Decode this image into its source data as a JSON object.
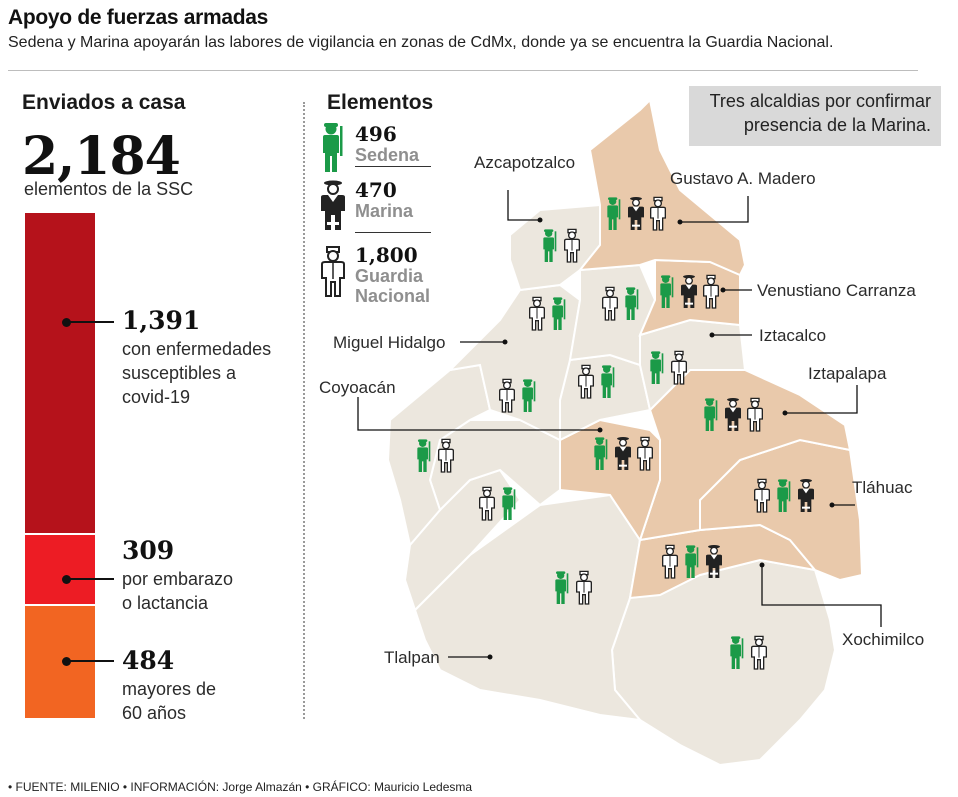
{
  "header": {
    "title": "Apoyo de fuerzas armadas",
    "subtitle": "Sedena y Marina apoyarán las labores de vigilancia en zonas de CdMx, donde ya se encuentra la Guardia Nacional."
  },
  "colors": {
    "sedena": "#1b9a48",
    "marina": "#222222",
    "guardia": "#ffffff",
    "map_default": "#ece7de",
    "map_marina": "#e9c9ab",
    "bar_dark": "#b5121b",
    "bar_mid": "#ed1c24",
    "bar_orange": "#f26522"
  },
  "chart_data": [
    {
      "type": "bar",
      "title": "Enviados a casa",
      "total": {
        "value": "2,184",
        "label": "elementos de la SSC",
        "number": 2184
      },
      "categories": [
        "con enfermedades susceptibles a covid-19",
        "por embarazo o lactancia",
        "mayores de 60 años"
      ],
      "values": [
        1391,
        309,
        484
      ],
      "series": [
        {
          "value": "1,391",
          "label_lines": [
            "con enfermedades",
            "susceptibles a",
            "covid-19"
          ],
          "color": "#b5121b"
        },
        {
          "value": "309",
          "label_lines": [
            "por embarazo",
            "o lactancia"
          ],
          "color": "#ed1c24"
        },
        {
          "value": "484",
          "label_lines": [
            "mayores de",
            "60 años"
          ],
          "color": "#f26522"
        }
      ]
    },
    {
      "type": "map",
      "title": "Elementos",
      "legend": [
        {
          "value": "496",
          "label_lines": [
            "Sedena"
          ],
          "icon": "soldier-icon"
        },
        {
          "value": "470",
          "label_lines": [
            "Marina"
          ],
          "icon": "marine-icon"
        },
        {
          "value": "1,800",
          "label_lines": [
            "Guardia",
            "Nacional"
          ],
          "icon": "guard-icon"
        }
      ],
      "note_lines": [
        "Tres alcaldias por confirmar",
        "presencia de la Marina."
      ],
      "labels": {
        "azcapotzalco": "Azcapotzalco",
        "gam": "Gustavo A. Madero",
        "venustiano": "Venustiano Carranza",
        "iztacalco": "Iztacalco",
        "miguel_hidalgo": "Miguel Hidalgo",
        "iztapalapa": "Iztapalapa",
        "coyoacan": "Coyoacán",
        "tlahuac": "Tláhuac",
        "xochimilco": "Xochimilco",
        "tlalpan": "Tlalpan"
      },
      "districts": [
        {
          "id": "gam",
          "marina": true,
          "forces": [
            "sedena",
            "marina",
            "guardia"
          ]
        },
        {
          "id": "azcapotzalco",
          "marina": false,
          "forces": [
            "sedena",
            "guardia"
          ]
        },
        {
          "id": "cuauhtemoc",
          "marina": false,
          "forces": [
            "guardia",
            "sedena"
          ]
        },
        {
          "id": "miguel_hidalgo",
          "marina": false,
          "forces": [
            "guardia",
            "sedena"
          ]
        },
        {
          "id": "venustiano",
          "marina": true,
          "forces": [
            "sedena",
            "marina",
            "guardia"
          ]
        },
        {
          "id": "iztacalco",
          "marina": false,
          "forces": [
            "sedena",
            "guardia"
          ]
        },
        {
          "id": "benito_juarez",
          "marina": false,
          "forces": [
            "guardia",
            "sedena"
          ]
        },
        {
          "id": "alvaro_obregon",
          "marina": false,
          "forces": [
            "guardia",
            "sedena"
          ]
        },
        {
          "id": "coyoacan",
          "marina": true,
          "forces": [
            "sedena",
            "marina",
            "guardia"
          ]
        },
        {
          "id": "iztapalapa",
          "marina": true,
          "forces": [
            "sedena",
            "marina",
            "guardia"
          ]
        },
        {
          "id": "cuajimalpa",
          "marina": false,
          "forces": [
            "sedena",
            "guardia"
          ]
        },
        {
          "id": "magdalena_contreras",
          "marina": false,
          "forces": [
            "guardia",
            "sedena"
          ]
        },
        {
          "id": "tlahuac",
          "marina": true,
          "forces": [
            "guardia",
            "sedena",
            "marina"
          ]
        },
        {
          "id": "xochimilco",
          "marina": true,
          "forces": [
            "guardia",
            "sedena",
            "marina"
          ]
        },
        {
          "id": "tlalpan",
          "marina": false,
          "forces": [
            "sedena",
            "guardia"
          ]
        },
        {
          "id": "milpa_alta",
          "marina": false,
          "forces": [
            "sedena",
            "guardia"
          ]
        }
      ]
    }
  ],
  "footer": {
    "text": "• FUENTE: MILENIO • INFORMACIÓN: Jorge Almazán • GRÁFICO: Mauricio Ledesma"
  }
}
